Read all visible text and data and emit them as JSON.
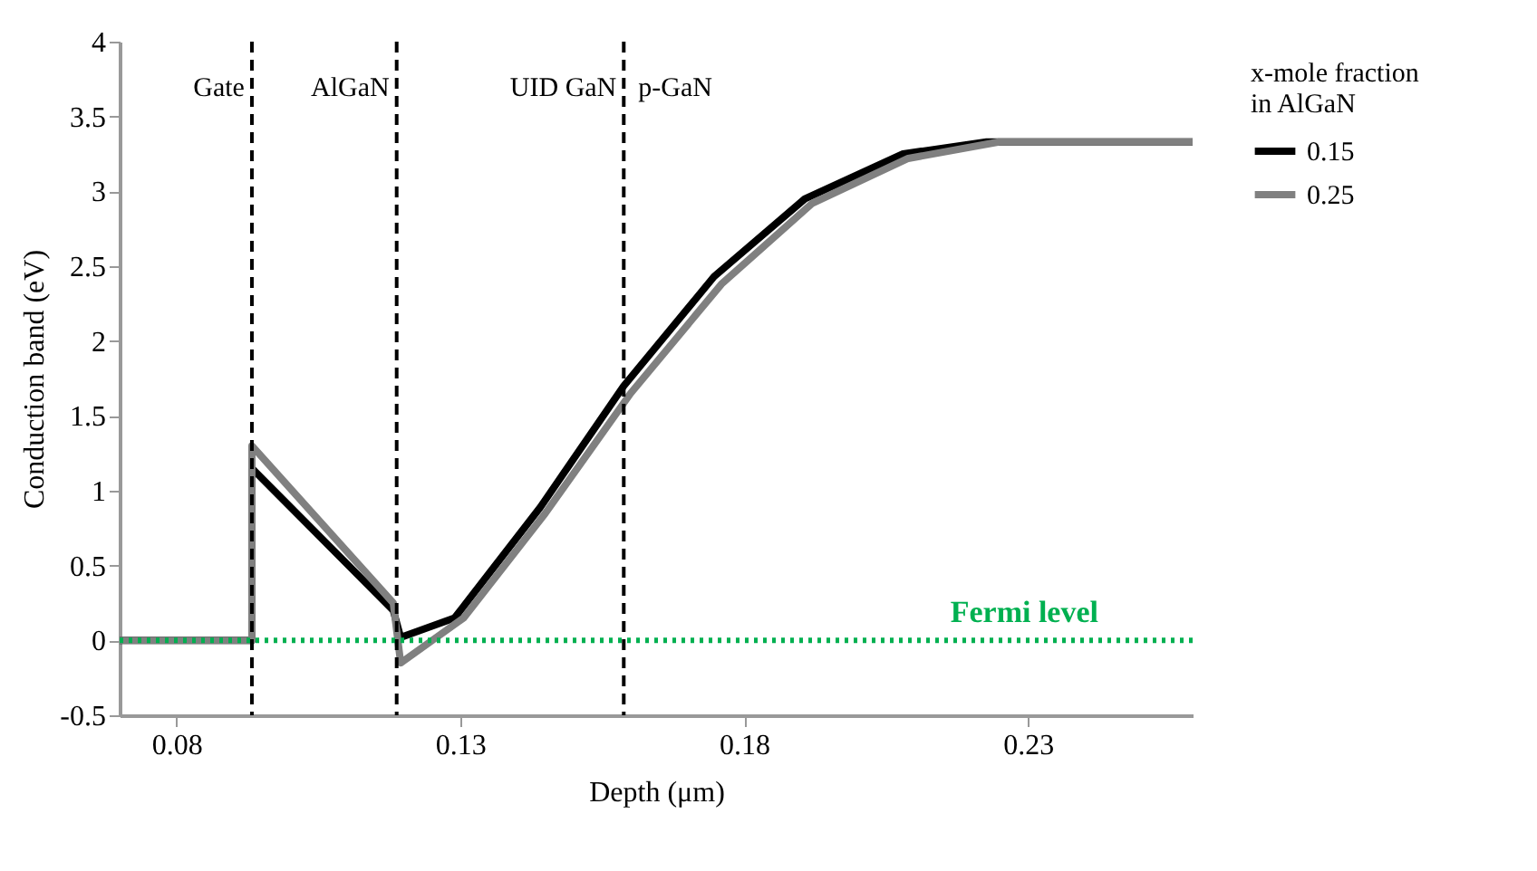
{
  "chart_data": {
    "type": "line",
    "xlabel": "Depth (μm)",
    "ylabel": "Conduction band (eV)",
    "legend_title": "x-mole fraction in AlGaN",
    "legend": "right",
    "grid": false,
    "line_style": "solid",
    "marker": "none",
    "xlim": [
      0.07,
      0.259
    ],
    "xticks": [
      0.08,
      0.13,
      0.18,
      0.23
    ],
    "ylim": [
      -0.5,
      4
    ],
    "yticks": [
      -0.5,
      0,
      0.5,
      1,
      1.5,
      2,
      2.5,
      3,
      3.5,
      4
    ],
    "series": [
      {
        "name": "0.15",
        "color": "#000000",
        "x": [
          0.07,
          0.0933,
          0.0933,
          0.1182,
          0.1195,
          0.129,
          0.1441,
          0.1588,
          0.1747,
          0.1907,
          0.208,
          0.2227,
          0.259
        ],
        "values": [
          0,
          0,
          1.15,
          0.2,
          0.02,
          0.15,
          0.89,
          1.7,
          2.43,
          2.95,
          3.25,
          3.33,
          3.33
        ]
      },
      {
        "name": "0.25",
        "color": "#808080",
        "x": [
          0.07,
          0.0933,
          0.0933,
          0.1182,
          0.1195,
          0.1306,
          0.145,
          0.16,
          0.176,
          0.192,
          0.2089,
          0.2249,
          0.259
        ],
        "values": [
          0,
          0,
          1.3,
          0.25,
          -0.15,
          0.15,
          0.85,
          1.65,
          2.38,
          2.92,
          3.22,
          3.33,
          3.33
        ]
      }
    ],
    "ref_lines": [
      {
        "axis": "y",
        "value": 0,
        "label": "Fermi level",
        "color": "#00b050",
        "line_style": "dotted"
      },
      {
        "axis": "x",
        "value": 0.0933,
        "label": "Gate",
        "color": "#000000",
        "line_style": "dashed"
      },
      {
        "axis": "x",
        "value": 0.1188,
        "label": "AlGaN",
        "color": "#000000",
        "line_style": "dashed"
      },
      {
        "axis": "x",
        "value": 0.1588,
        "label": "UID GaN",
        "color": "#000000",
        "line_style": "dashed"
      }
    ],
    "annotations": [
      "p-GaN"
    ]
  }
}
